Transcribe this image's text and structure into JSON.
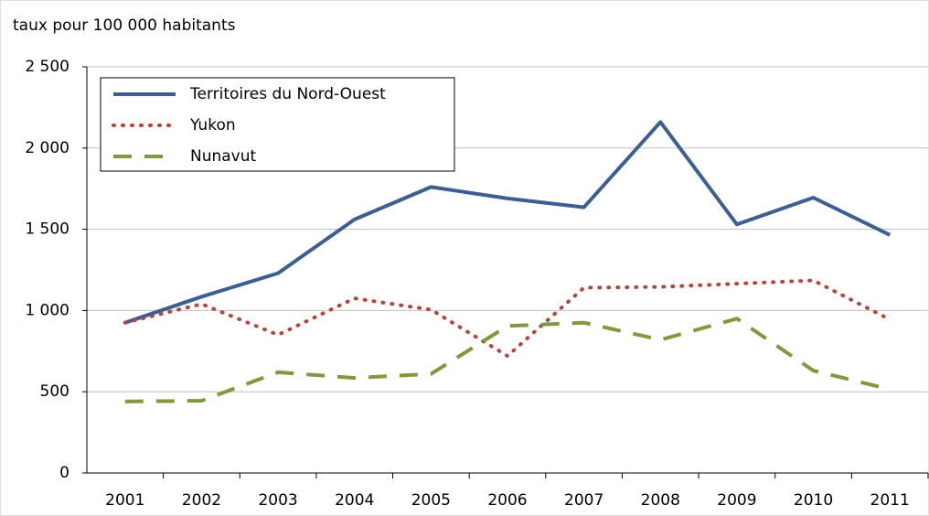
{
  "chart_data": {
    "type": "line",
    "y_axis_label": "taux pour 100 000 habitants",
    "categories": [
      "2001",
      "2002",
      "2003",
      "2004",
      "2005",
      "2006",
      "2007",
      "2008",
      "2009",
      "2010",
      "2011"
    ],
    "series": [
      {
        "name": "Territoires du Nord-Ouest",
        "color": "#3b5f93",
        "style": "solid",
        "values": [
          925,
          1085,
          1230,
          1560,
          1760,
          1690,
          1635,
          2160,
          1530,
          1695,
          1465
        ]
      },
      {
        "name": "Yukon",
        "color": "#b5443e",
        "style": "dotted",
        "values": [
          925,
          1040,
          850,
          1075,
          1005,
          720,
          1140,
          1145,
          1165,
          1185,
          945
        ]
      },
      {
        "name": "Nunavut",
        "color": "#7f9a3d",
        "style": "dashed",
        "values": [
          440,
          445,
          620,
          585,
          610,
          905,
          925,
          820,
          950,
          630,
          515
        ]
      }
    ],
    "ylim": [
      0,
      2500
    ],
    "yticks": [
      0,
      500,
      {
        "value": 1000,
        "label": "1 000"
      },
      {
        "value": 1500,
        "label": "1 500"
      },
      {
        "value": 2000,
        "label": "2 000"
      },
      {
        "value": 2500,
        "label": "2 500"
      }
    ],
    "grid": true,
    "legend": "top-left"
  }
}
